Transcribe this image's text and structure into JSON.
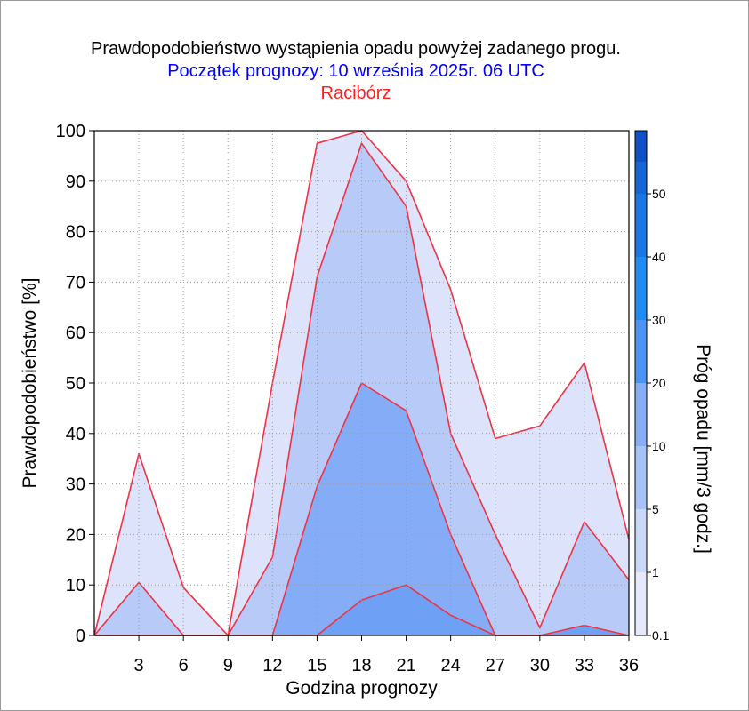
{
  "titles": {
    "line1": "Prawdopodobieństwo wystąpienia opadu powyżej zadanego progu.",
    "line2": "Początek prognozy: 10 września 2025r. 06 UTC",
    "line3": "Racibórz"
  },
  "colors": {
    "line1": "#000000",
    "line2": "#0000ff",
    "line3": "#ff2020",
    "series_outline": "#ee3344"
  },
  "chart_data": {
    "type": "area",
    "xlabel": "Godzina prognozy",
    "ylabel": "Prawdopodobieństwo [%]",
    "x": [
      0,
      3,
      6,
      9,
      12,
      15,
      18,
      21,
      24,
      27,
      30,
      33,
      36
    ],
    "xticks": [
      3,
      6,
      9,
      12,
      15,
      18,
      21,
      24,
      27,
      30,
      33,
      36
    ],
    "xlim": [
      0,
      36
    ],
    "ylim": [
      0,
      100
    ],
    "yticks": [
      0,
      10,
      20,
      30,
      40,
      50,
      60,
      70,
      80,
      90,
      100
    ],
    "grid": true,
    "series": [
      {
        "threshold": 0.1,
        "color": "#dde3fb",
        "values": [
          0,
          36,
          9.5,
          0,
          50,
          97.5,
          100,
          90,
          68.5,
          39,
          41.5,
          54,
          19
        ]
      },
      {
        "threshold": 1,
        "color": "#b8cbf8",
        "values": [
          0,
          10.5,
          0,
          0,
          15.5,
          71,
          97.5,
          85,
          40,
          20,
          1.5,
          22.5,
          11
        ]
      },
      {
        "threshold": 5,
        "color": "#85adf7",
        "values": [
          0,
          0,
          0,
          0,
          0,
          29.5,
          50,
          44.5,
          20,
          0,
          0,
          0,
          0
        ]
      },
      {
        "threshold": 10,
        "color": "#6ea1f6",
        "values": [
          0,
          0,
          0,
          0,
          0,
          0,
          7,
          10,
          4,
          0,
          0,
          2,
          0
        ]
      }
    ],
    "colorbar": {
      "title": "Próg opadu [mm/3 godz.]",
      "ticks": [
        "0.1",
        "1",
        "5",
        "10",
        "20",
        "30",
        "40",
        "50"
      ],
      "colors": [
        "#e5e9fb",
        "#c9d7f9",
        "#a6c2f8",
        "#86aef6",
        "#4d93f4",
        "#1f8cf5",
        "#1a75e6",
        "#1565d8",
        "#1050c6"
      ]
    }
  }
}
